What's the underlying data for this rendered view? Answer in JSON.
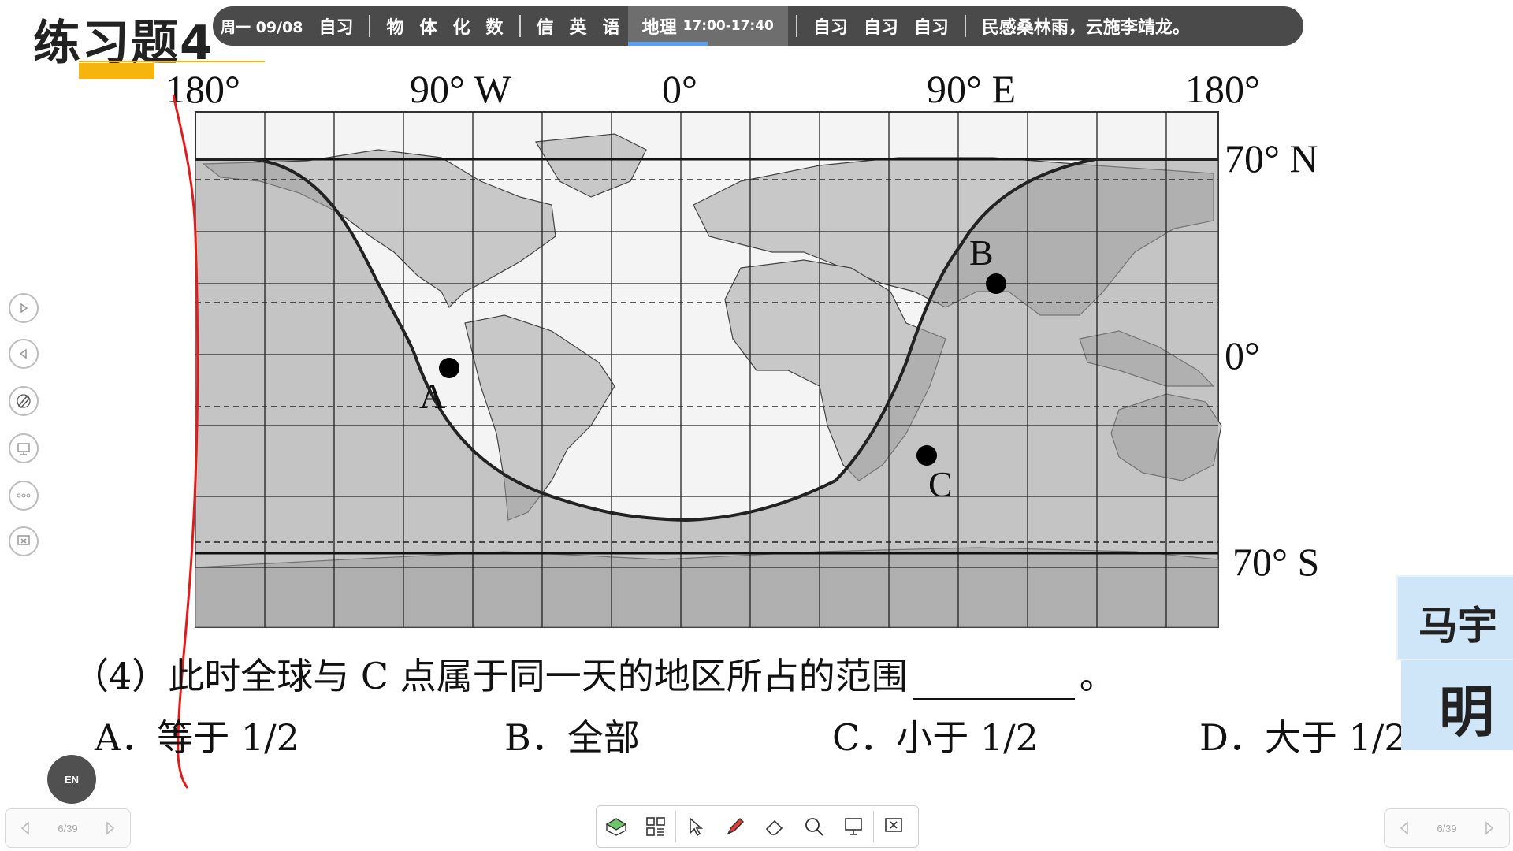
{
  "slide": {
    "title": "练习题4"
  },
  "schedule": {
    "day": "周一 09/08",
    "groups": [
      [
        "自习"
      ],
      [
        "物",
        "体",
        "化",
        "数"
      ],
      [
        "信",
        "英",
        "语"
      ]
    ],
    "current": {
      "subject": "地理",
      "time": "17:00-17:40",
      "progress": 0.5
    },
    "after": [
      "自习",
      "自习",
      "自习"
    ],
    "motto": "民感桑林雨，云施李靖龙。"
  },
  "map": {
    "top_labels": [
      "180°",
      "90° W",
      "0°",
      "90° E",
      "180°"
    ],
    "right_labels": [
      "70° N",
      "0°",
      "70° S"
    ],
    "points": [
      {
        "label": "A"
      },
      {
        "label": "B"
      },
      {
        "label": "C"
      }
    ]
  },
  "question": {
    "stem": "（4）此时全球与 C 点属于同一天的地区所占的范围",
    "end": "。",
    "options": [
      {
        "letter": "A．",
        "text": "等于 1/2"
      },
      {
        "letter": "B．",
        "text": "全部"
      },
      {
        "letter": "C．",
        "text": "小于 1/2"
      },
      {
        "letter": "D．",
        "text": "大于 1/2"
      }
    ]
  },
  "side_toolbar": [
    "play-icon",
    "prev-icon",
    "pen-icon",
    "screen-icon",
    "more-icon",
    "exit-icon"
  ],
  "nav": {
    "page": "6/39"
  },
  "bottom_toolbar": [
    "board-icon",
    "apps-icon",
    "cursor-icon",
    "pen-icon",
    "eraser-icon",
    "search-icon",
    "present-icon",
    "exit-icon"
  ],
  "en_button": "EN",
  "name_card": {
    "line1": "马宇",
    "line2": "明"
  },
  "colors": {
    "land": "#c8c8c8",
    "night": "#a8a8a8",
    "accent": "#f6b40e",
    "schedule_bg": "#4a4a4a",
    "progress": "#5aa2f0"
  }
}
